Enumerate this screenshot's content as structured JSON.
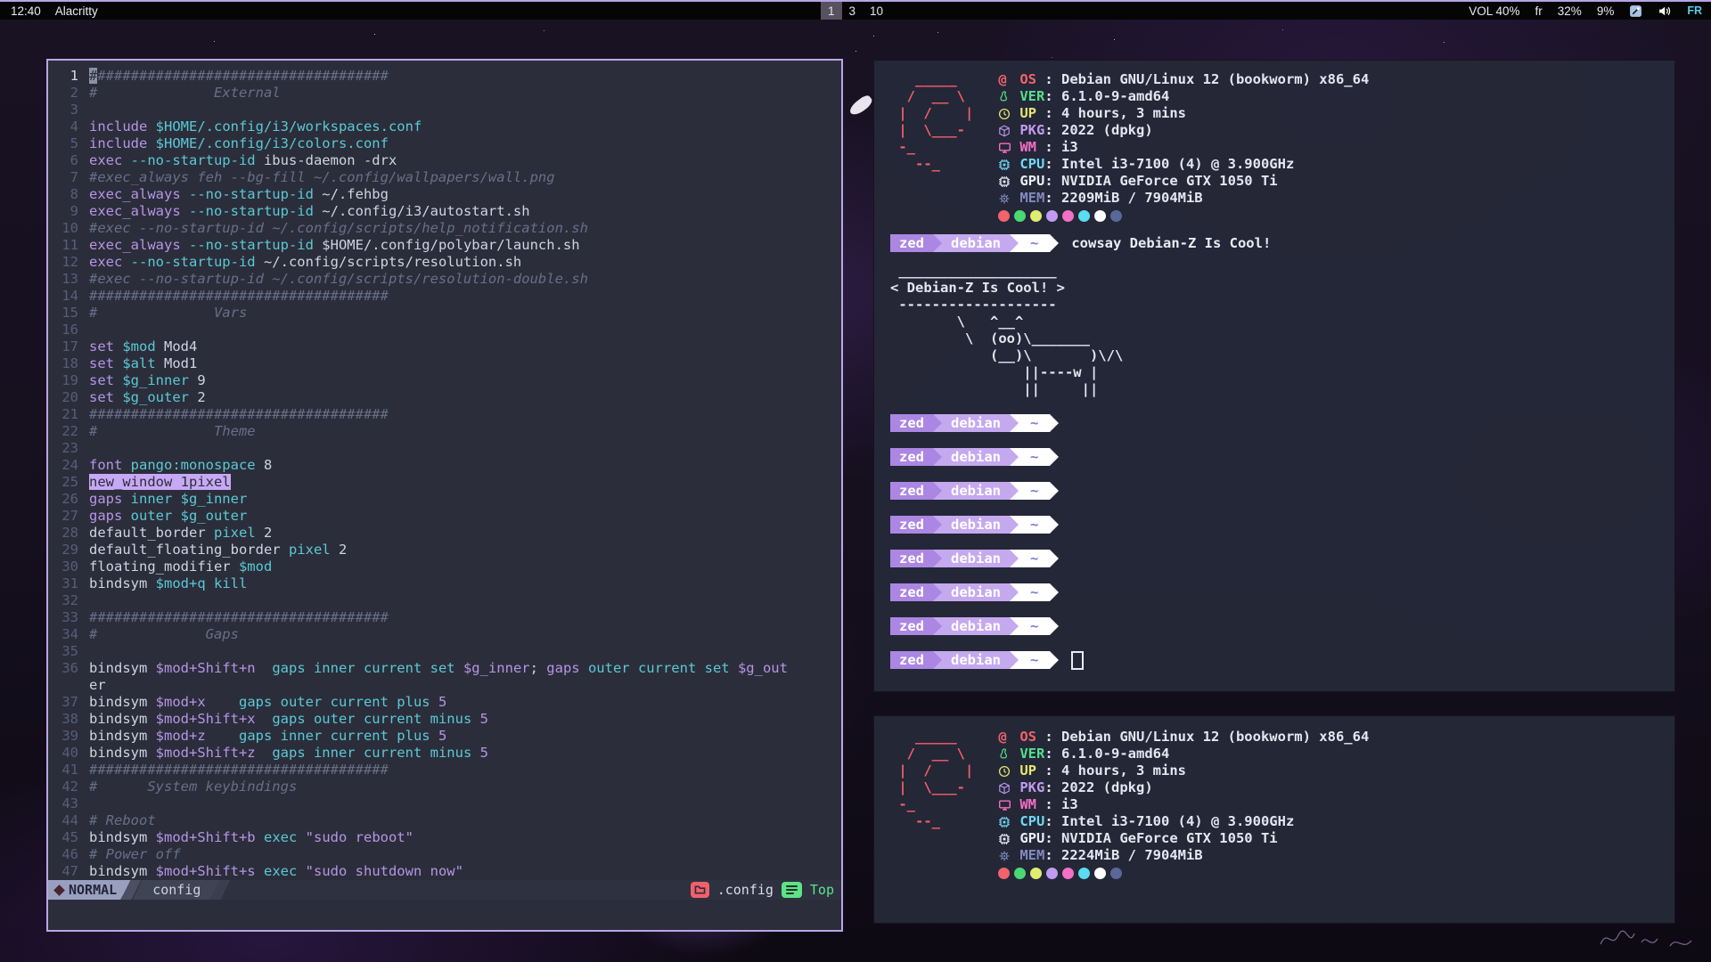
{
  "bar": {
    "time": "12:40",
    "app_title": "Alacritty",
    "workspaces": [
      {
        "label": "1",
        "active": true
      },
      {
        "label": "3",
        "active": false
      },
      {
        "label": "10",
        "active": false
      }
    ],
    "vol": "VOL 40%",
    "kbd": "fr",
    "stat1": "32%",
    "stat2": "9%",
    "lang_badge": "FR"
  },
  "editor": {
    "mode": "NORMAL",
    "file": "config",
    "dir": ".config",
    "position": "Top",
    "lines": [
      {
        "n": 1,
        "a": true,
        "t": [
          [
            "cur",
            "#"
          ],
          [
            "c",
            "###################################"
          ]
        ]
      },
      {
        "n": 2,
        "t": [
          [
            "c",
            "#              External"
          ]
        ]
      },
      {
        "n": 3,
        "t": []
      },
      {
        "n": 4,
        "t": [
          [
            "k",
            "include"
          ],
          [
            "y",
            " $HOME/.config/i3/workspaces.conf"
          ]
        ]
      },
      {
        "n": 5,
        "t": [
          [
            "k",
            "include"
          ],
          [
            "y",
            " $HOME/.config/i3/colors.conf"
          ]
        ]
      },
      {
        "n": 6,
        "t": [
          [
            "k",
            "exec"
          ],
          [
            "y",
            " --no-startup-id"
          ],
          [
            "w",
            " ibus-daemon -drx"
          ]
        ]
      },
      {
        "n": 7,
        "t": [
          [
            "c",
            "#exec_always feh --bg-fill ~/.config/wallpapers/wall.png"
          ]
        ]
      },
      {
        "n": 8,
        "t": [
          [
            "k",
            "exec_always"
          ],
          [
            "y",
            " --no-startup-id"
          ],
          [
            "w",
            " ~/.fehbg"
          ]
        ]
      },
      {
        "n": 9,
        "t": [
          [
            "k",
            "exec_always"
          ],
          [
            "y",
            " --no-startup-id"
          ],
          [
            "w",
            " ~/.config/i3/autostart.sh"
          ]
        ]
      },
      {
        "n": 10,
        "t": [
          [
            "c",
            "#exec --no-startup-id ~/.config/scripts/help_notification.sh"
          ]
        ]
      },
      {
        "n": 11,
        "t": [
          [
            "k",
            "exec_always"
          ],
          [
            "y",
            " --no-startup-id"
          ],
          [
            "w",
            " $HOME/.config/polybar/launch.sh"
          ]
        ]
      },
      {
        "n": 12,
        "t": [
          [
            "k",
            "exec"
          ],
          [
            "y",
            " --no-startup-id"
          ],
          [
            "w",
            " ~/.config/scripts/resolution.sh"
          ]
        ]
      },
      {
        "n": 13,
        "t": [
          [
            "c",
            "#exec --no-startup-id ~/.config/scripts/resolution-double.sh"
          ]
        ]
      },
      {
        "n": 14,
        "t": [
          [
            "c",
            "####################################"
          ]
        ]
      },
      {
        "n": 15,
        "t": [
          [
            "c",
            "#              Vars"
          ]
        ]
      },
      {
        "n": 16,
        "t": []
      },
      {
        "n": 17,
        "t": [
          [
            "k",
            "set"
          ],
          [
            "y",
            " $mod"
          ],
          [
            "w",
            " Mod4"
          ]
        ]
      },
      {
        "n": 18,
        "t": [
          [
            "k",
            "set"
          ],
          [
            "y",
            " $alt"
          ],
          [
            "w",
            " Mod1"
          ]
        ]
      },
      {
        "n": 19,
        "t": [
          [
            "k",
            "set"
          ],
          [
            "y",
            " $g_inner"
          ],
          [
            "w",
            " 9"
          ]
        ]
      },
      {
        "n": 20,
        "t": [
          [
            "k",
            "set"
          ],
          [
            "y",
            " $g_outer"
          ],
          [
            "w",
            " 2"
          ]
        ]
      },
      {
        "n": 21,
        "t": [
          [
            "c",
            "####################################"
          ]
        ]
      },
      {
        "n": 22,
        "t": [
          [
            "c",
            "#              Theme"
          ]
        ]
      },
      {
        "n": 23,
        "t": []
      },
      {
        "n": 24,
        "t": [
          [
            "k",
            "font"
          ],
          [
            "y",
            " pango:monospace"
          ],
          [
            "w",
            " 8"
          ]
        ]
      },
      {
        "n": 25,
        "t": [
          [
            "hl",
            "new_window 1pixel"
          ]
        ]
      },
      {
        "n": 26,
        "t": [
          [
            "k",
            "gaps"
          ],
          [
            "y",
            " inner $g_inner"
          ]
        ]
      },
      {
        "n": 27,
        "t": [
          [
            "k",
            "gaps"
          ],
          [
            "y",
            " outer $g_outer"
          ]
        ]
      },
      {
        "n": 28,
        "t": [
          [
            "w",
            "default_border"
          ],
          [
            "y",
            " pixel"
          ],
          [
            "w",
            " 2"
          ]
        ]
      },
      {
        "n": 29,
        "t": [
          [
            "w",
            "default_floating_border"
          ],
          [
            "y",
            " pixel"
          ],
          [
            "w",
            " 2"
          ]
        ]
      },
      {
        "n": 30,
        "t": [
          [
            "w",
            "floating_modifier"
          ],
          [
            "y",
            " $mod"
          ]
        ]
      },
      {
        "n": 31,
        "t": [
          [
            "w",
            "bindsym"
          ],
          [
            "y",
            " $mod+q kill"
          ]
        ]
      },
      {
        "n": 32,
        "t": []
      },
      {
        "n": 33,
        "t": [
          [
            "c",
            "####################################"
          ]
        ]
      },
      {
        "n": 34,
        "t": [
          [
            "c",
            "#             Gaps"
          ]
        ]
      },
      {
        "n": 35,
        "t": []
      },
      {
        "n": 36,
        "t": [
          [
            "w",
            "bindsym"
          ],
          [
            "p",
            " $mod+Shift+n"
          ],
          [
            "y",
            "  gaps inner current set"
          ],
          [
            "p",
            " $g_inner"
          ],
          [
            "w",
            ";"
          ],
          [
            "p",
            " gaps"
          ],
          [
            "y",
            " outer current set"
          ],
          [
            "p",
            " $g_out"
          ]
        ]
      },
      {
        "t": [
          [
            "w",
            "er"
          ]
        ]
      },
      {
        "n": 37,
        "t": [
          [
            "w",
            "bindsym"
          ],
          [
            "p",
            " $mod+x"
          ],
          [
            "y",
            "    gaps outer current plus"
          ],
          [
            "p",
            " 5"
          ]
        ]
      },
      {
        "n": 38,
        "t": [
          [
            "w",
            "bindsym"
          ],
          [
            "p",
            " $mod+Shift+x"
          ],
          [
            "y",
            "  gaps outer current minus"
          ],
          [
            "p",
            " 5"
          ]
        ]
      },
      {
        "n": 39,
        "t": [
          [
            "w",
            "bindsym"
          ],
          [
            "p",
            " $mod+z"
          ],
          [
            "y",
            "    gaps inner current plus"
          ],
          [
            "p",
            " 5"
          ]
        ]
      },
      {
        "n": 40,
        "t": [
          [
            "w",
            "bindsym"
          ],
          [
            "p",
            " $mod+Shift+z"
          ],
          [
            "y",
            "  gaps inner current minus"
          ],
          [
            "p",
            " 5"
          ]
        ]
      },
      {
        "n": 41,
        "t": [
          [
            "c",
            "####################################"
          ]
        ]
      },
      {
        "n": 42,
        "t": [
          [
            "c",
            "#      System keybindings"
          ]
        ]
      },
      {
        "n": 43,
        "t": []
      },
      {
        "n": 44,
        "t": [
          [
            "c",
            "# Reboot"
          ]
        ]
      },
      {
        "n": 45,
        "t": [
          [
            "w",
            "bindsym"
          ],
          [
            "p",
            " $mod+Shift+b"
          ],
          [
            "y",
            " exec"
          ],
          [
            "p",
            " \"sudo reboot\""
          ]
        ]
      },
      {
        "n": 46,
        "t": [
          [
            "c",
            "# Power off"
          ]
        ]
      },
      {
        "n": 47,
        "t": [
          [
            "w",
            "bindsym"
          ],
          [
            "p",
            " $mod+Shift+s"
          ],
          [
            "y",
            " exec"
          ],
          [
            "p",
            " \"sudo shutdown now\""
          ]
        ]
      }
    ]
  },
  "terminal": {
    "prompt": {
      "user": "zed",
      "host": "debian",
      "path": "~"
    },
    "command": "cowsay Debian-Z Is Cool!",
    "cow": " ___________________\n< Debian-Z Is Cool! >\n -------------------\n        \\   ^__^\n         \\  (oo)\\_______\n            (__)\\       )\\/\\\n                ||----w |\n                ||     ||",
    "idle_prompt_count": 8
  },
  "fetch1": {
    "art": "   _____\n  /  __ \\\n |  /    |\n |  \\___-\n -_\n   --_",
    "rows": [
      {
        "icon": "swirl",
        "name": "os",
        "label": "OS",
        "pad": " : ",
        "value": "Debian GNU/Linux 12 (bookworm) x86_64",
        "color": "#f2636c"
      },
      {
        "icon": "tux",
        "name": "ver",
        "label": "VER",
        "pad": ": ",
        "value": "6.1.0-9-amd64",
        "color": "#53e08c"
      },
      {
        "icon": "clock",
        "name": "up",
        "label": "UP",
        "pad": " : ",
        "value": "4 hours, 3 mins",
        "color": "#e4e76e"
      },
      {
        "icon": "package",
        "name": "pkg",
        "label": "PKG",
        "pad": ": ",
        "value": "2022 (dpkg)",
        "color": "#c39bf0"
      },
      {
        "icon": "monitor",
        "name": "wm",
        "label": "WM",
        "pad": " : ",
        "value": "i3",
        "color": "#f56fc5"
      },
      {
        "icon": "chip",
        "name": "cpu",
        "label": "CPU",
        "pad": ": ",
        "value": "Intel i3-7100 (4) @ 3.900GHz",
        "color": "#70d7f2"
      },
      {
        "icon": "chip",
        "name": "gpu",
        "label": "GPU",
        "pad": ": ",
        "value": "NVIDIA GeForce GTX 1050 Ti",
        "color": "#eceef6"
      },
      {
        "icon": "memory",
        "name": "mem",
        "label": "MEM",
        "pad": ": ",
        "value": "2209MiB / 7904MiB",
        "color": "#808ac0"
      }
    ],
    "palette": [
      "#f2636c",
      "#49d874",
      "#e0ed70",
      "#bf9cf2",
      "#f470c4",
      "#5cdcf0",
      "#ffffff",
      "#5a6899"
    ]
  },
  "fetch2": {
    "art": "   _____\n  /  __ \\\n |  /    |\n |  \\___-\n -_\n   --_",
    "rows": [
      {
        "icon": "swirl",
        "name": "os",
        "label": "OS",
        "pad": " : ",
        "value": "Debian GNU/Linux 12 (bookworm) x86_64",
        "color": "#f2636c"
      },
      {
        "icon": "tux",
        "name": "ver",
        "label": "VER",
        "pad": ": ",
        "value": "6.1.0-9-amd64",
        "color": "#53e08c"
      },
      {
        "icon": "clock",
        "name": "up",
        "label": "UP",
        "pad": " : ",
        "value": "4 hours, 3 mins",
        "color": "#e4e76e"
      },
      {
        "icon": "package",
        "name": "pkg",
        "label": "PKG",
        "pad": ": ",
        "value": "2022 (dpkg)",
        "color": "#c39bf0"
      },
      {
        "icon": "monitor",
        "name": "wm",
        "label": "WM",
        "pad": " : ",
        "value": "i3",
        "color": "#f56fc5"
      },
      {
        "icon": "chip",
        "name": "cpu",
        "label": "CPU",
        "pad": ": ",
        "value": "Intel i3-7100 (4) @ 3.900GHz",
        "color": "#70d7f2"
      },
      {
        "icon": "chip",
        "name": "gpu",
        "label": "GPU",
        "pad": ": ",
        "value": "NVIDIA GeForce GTX 1050 Ti",
        "color": "#eceef6"
      },
      {
        "icon": "memory",
        "name": "mem",
        "label": "MEM",
        "pad": ": ",
        "value": "2224MiB / 7904MiB",
        "color": "#808ac0"
      }
    ],
    "palette": [
      "#f2636c",
      "#49d874",
      "#e0ed70",
      "#bf9cf2",
      "#f470c4",
      "#5cdcf0",
      "#ffffff",
      "#5a6899"
    ]
  }
}
